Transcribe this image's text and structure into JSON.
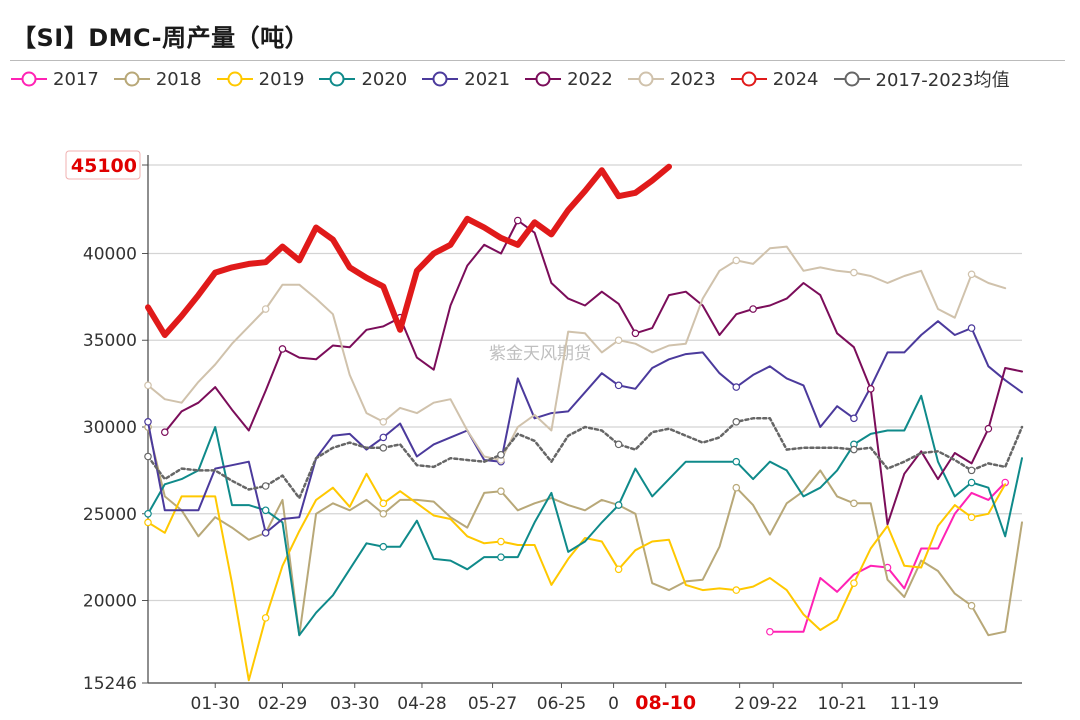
{
  "header": {
    "title": "【SI】DMC-周产量（吨）"
  },
  "watermark": "紫金天风期货",
  "chart_data": {
    "type": "line",
    "title": "【SI】DMC-周产量（吨）",
    "xlabel": "",
    "ylabel": "",
    "ylim": [
      15246,
      45100
    ],
    "xlim": [
      0,
      52
    ],
    "x_ticks": [
      {
        "label": "01-30",
        "x": 4
      },
      {
        "label": "02-29",
        "x": 8
      },
      {
        "label": "03-30",
        "x": 12.3
      },
      {
        "label": "04-28",
        "x": 16.3
      },
      {
        "label": "05-27",
        "x": 20.5
      },
      {
        "label": "06-25",
        "x": 24.6
      },
      {
        "label": "0",
        "x": 27.7
      },
      {
        "label": "08-10",
        "x": 30.8,
        "highlight": true
      },
      {
        "label": "2",
        "x": 35.2
      },
      {
        "label": "09-22",
        "x": 37.2
      },
      {
        "label": "10-21",
        "x": 41.3
      },
      {
        "label": "11-19",
        "x": 45.6
      }
    ],
    "y_ticks": [
      {
        "label": "15246",
        "value": 15246
      },
      {
        "label": "20000",
        "value": 20000
      },
      {
        "label": "25000",
        "value": 25000
      },
      {
        "label": "30000",
        "value": 30000
      },
      {
        "label": "35000",
        "value": 35000
      },
      {
        "label": "40000",
        "value": 40000
      },
      {
        "label": "45100",
        "value": 45100,
        "highlight": true
      }
    ],
    "series": [
      {
        "name": "2017",
        "color": "#ff22b4",
        "width": 2,
        "dash": "",
        "start": 37,
        "values": [
          18200,
          18200,
          18200,
          21300,
          20500,
          21500,
          22000,
          21900,
          20700,
          23000,
          23000,
          25000,
          26200,
          25800,
          26800
        ]
      },
      {
        "name": "2018",
        "color": "#b8a878",
        "width": 2,
        "dash": "",
        "start": 0,
        "values": [
          30000,
          26000,
          25200,
          23700,
          24800,
          24200,
          23500,
          23900,
          25800,
          18000,
          25000,
          25600,
          25200,
          25800,
          25000,
          25800,
          25800,
          25700,
          24800,
          24200,
          26200,
          26300,
          25200,
          25600,
          25900,
          25500,
          25200,
          25800,
          25500,
          25000,
          21000,
          20600,
          21100,
          21200,
          23100,
          26500,
          25500,
          23800,
          25600,
          26300,
          27500,
          26000,
          25600,
          25600,
          21200,
          20200,
          22300,
          21700,
          20400,
          19700,
          18000,
          18200,
          24500
        ]
      },
      {
        "name": "2019",
        "color": "#ffc800",
        "width": 2,
        "dash": "",
        "start": 0,
        "values": [
          24500,
          23900,
          26000,
          26000,
          26000,
          21000,
          15400,
          19000,
          22000,
          24000,
          25800,
          26500,
          25400,
          27300,
          25600,
          26300,
          25600,
          24900,
          24700,
          23700,
          23300,
          23400,
          23200,
          23200,
          20900,
          22400,
          23600,
          23400,
          21800,
          22900,
          23400,
          23500,
          20900,
          20600,
          20700,
          20600,
          20800,
          21300,
          20600,
          19200,
          18300,
          18900,
          21000,
          23000,
          24300,
          22000,
          21900,
          24300,
          25500,
          24800,
          25000,
          26700
        ]
      },
      {
        "name": "2020",
        "color": "#0f8a8a",
        "width": 2,
        "dash": "",
        "start": 0,
        "values": [
          25000,
          26700,
          27000,
          27500,
          30000,
          25500,
          25500,
          25200,
          24500,
          18000,
          19300,
          20300,
          21800,
          23300,
          23100,
          23100,
          24600,
          22400,
          22300,
          21800,
          22500,
          22500,
          22500,
          24500,
          26200,
          22800,
          23400,
          24500,
          25500,
          27600,
          26000,
          27000,
          28000,
          28000,
          28000,
          28000,
          27000,
          28000,
          27500,
          26000,
          26500,
          27500,
          29000,
          29600,
          29800,
          29800,
          31800,
          28000,
          26000,
          26800,
          26500,
          23700,
          28200
        ]
      },
      {
        "name": "2021",
        "color": "#4b3a9c",
        "width": 2,
        "dash": "",
        "start": 0,
        "values": [
          30300,
          25200,
          25200,
          25200,
          27600,
          27800,
          28000,
          23900,
          24700,
          24800,
          28200,
          29500,
          29600,
          28700,
          29400,
          30200,
          28300,
          29000,
          29400,
          29800,
          28100,
          28000,
          32800,
          30500,
          30800,
          30900,
          32000,
          33100,
          32400,
          32200,
          33400,
          33900,
          34200,
          34300,
          33100,
          32300,
          33000,
          33500,
          32800,
          32400,
          30000,
          31200,
          30500,
          32300,
          34300,
          34300,
          35300,
          36100,
          35300,
          35700,
          33500,
          32700,
          32000
        ]
      },
      {
        "name": "2022",
        "color": "#7b0d5a",
        "width": 2,
        "dash": "",
        "start": 1,
        "values": [
          29700,
          30900,
          31400,
          32300,
          31000,
          29800,
          32100,
          34500,
          34000,
          33900,
          34700,
          34600,
          35600,
          35800,
          36300,
          34000,
          33300,
          37000,
          39300,
          40500,
          40000,
          41900,
          41200,
          38300,
          37400,
          37000,
          37800,
          37100,
          35400,
          35700,
          37600,
          37800,
          37000,
          35300,
          36500,
          36800,
          37000,
          37400,
          38300,
          37600,
          35400,
          34600,
          32200,
          24400,
          27300,
          28600,
          27000,
          28500,
          27900,
          29900,
          33400,
          33200
        ]
      },
      {
        "name": "2023",
        "color": "#d0c2ac",
        "width": 2,
        "dash": "",
        "start": 0,
        "values": [
          32400,
          31600,
          31400,
          32600,
          33600,
          34800,
          35800,
          36800,
          38200,
          38200,
          37400,
          36500,
          33000,
          30800,
          30300,
          31100,
          30800,
          31400,
          31600,
          29800,
          28300,
          28100,
          30000,
          30700,
          29800,
          35500,
          35400,
          34300,
          35000,
          34800,
          34300,
          34700,
          34800,
          37400,
          39000,
          39600,
          39400,
          40300,
          40400,
          39000,
          39200,
          39000,
          38900,
          38700,
          38300,
          38700,
          39000,
          36800,
          36300,
          38800,
          38300,
          38000
        ]
      },
      {
        "name": "2024",
        "color": "#e01a1a",
        "width": 6,
        "dash": "",
        "start": 0,
        "values": [
          36900,
          35300,
          36400,
          37600,
          38900,
          39200,
          39400,
          39500,
          40400,
          39600,
          41500,
          40800,
          39200,
          38600,
          38100,
          35600,
          39000,
          40000,
          40500,
          42000,
          41500,
          40900,
          40500,
          41800,
          41100,
          42500,
          43600,
          44800,
          43300,
          43500,
          44200,
          45000
        ]
      },
      {
        "name": "2017-2023均值",
        "color": "#666666",
        "width": 2.5,
        "dash": "3,3",
        "start": 0,
        "values": [
          28300,
          27000,
          27600,
          27500,
          27500,
          26900,
          26400,
          26600,
          27200,
          25900,
          28200,
          28800,
          29100,
          28800,
          28800,
          29000,
          27800,
          27700,
          28200,
          28100,
          28000,
          28400,
          29600,
          29200,
          28000,
          29500,
          30000,
          29800,
          29000,
          28700,
          29700,
          29900,
          29500,
          29100,
          29400,
          30300,
          30500,
          30500,
          28700,
          28800,
          28800,
          28800,
          28700,
          28800,
          27600,
          28000,
          28500,
          28600,
          28100,
          27500,
          27900,
          27700,
          30000
        ]
      }
    ]
  }
}
